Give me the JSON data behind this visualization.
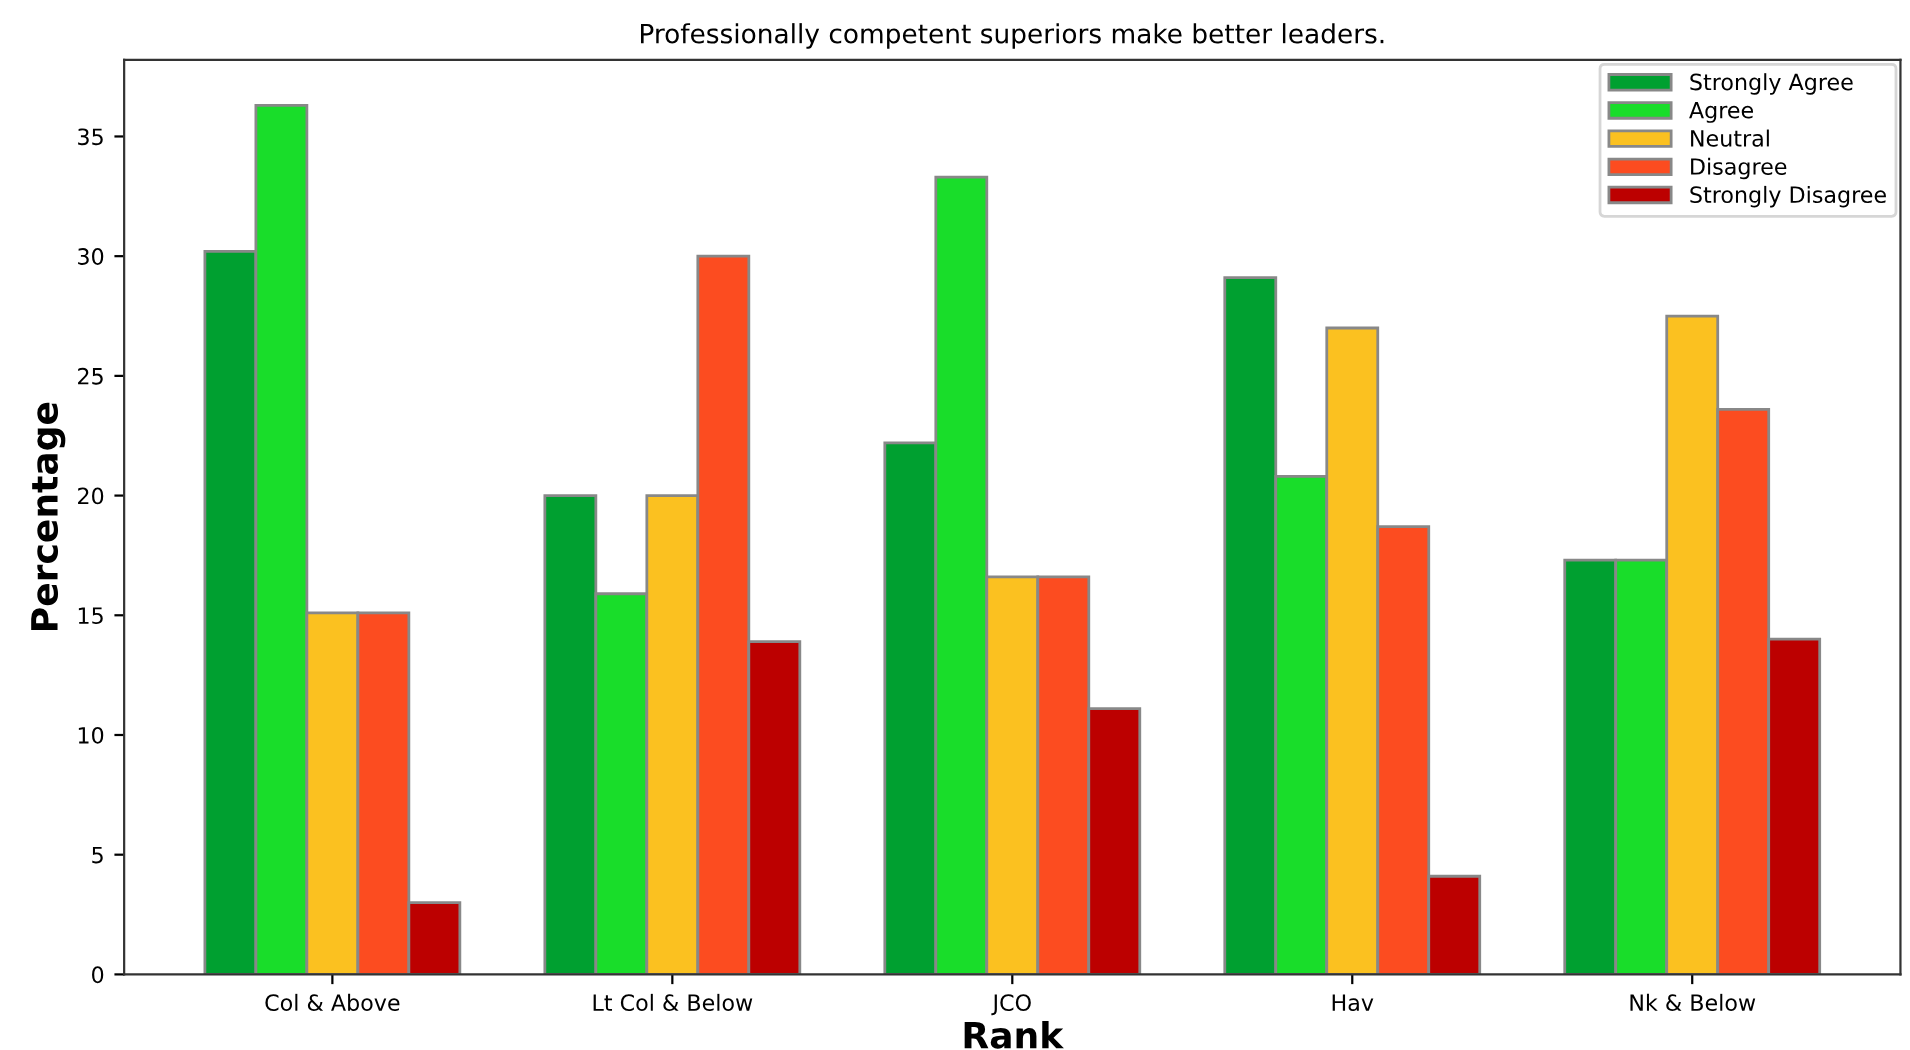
{
  "chart_data": {
    "type": "bar",
    "title": "Professionally competent superiors make better leaders.",
    "xlabel": "Rank",
    "ylabel": "Percentage",
    "categories": [
      "Col & Above",
      "Lt Col & Below",
      "JCO",
      "Hav",
      "Nk & Below"
    ],
    "series": [
      {
        "name": "Strongly Agree",
        "color": "#00a030",
        "values": [
          30.2,
          20.0,
          22.2,
          29.1,
          17.3
        ]
      },
      {
        "name": "Agree",
        "color": "#19dd2a",
        "values": [
          36.3,
          15.9,
          33.3,
          20.8,
          17.3
        ]
      },
      {
        "name": "Neutral",
        "color": "#fbc120",
        "values": [
          15.1,
          20.0,
          16.6,
          27.0,
          27.5
        ]
      },
      {
        "name": "Disagree",
        "color": "#fc4c20",
        "values": [
          15.1,
          30.0,
          16.6,
          18.7,
          23.6
        ]
      },
      {
        "name": "Strongly Disagree",
        "color": "#bc0000",
        "values": [
          3.0,
          13.9,
          11.1,
          4.1,
          14.0
        ]
      }
    ],
    "ylim": [
      0,
      38.2
    ],
    "yticks": [
      0,
      5,
      10,
      15,
      20,
      25,
      30,
      35
    ],
    "grid": false,
    "legend": "top right"
  }
}
